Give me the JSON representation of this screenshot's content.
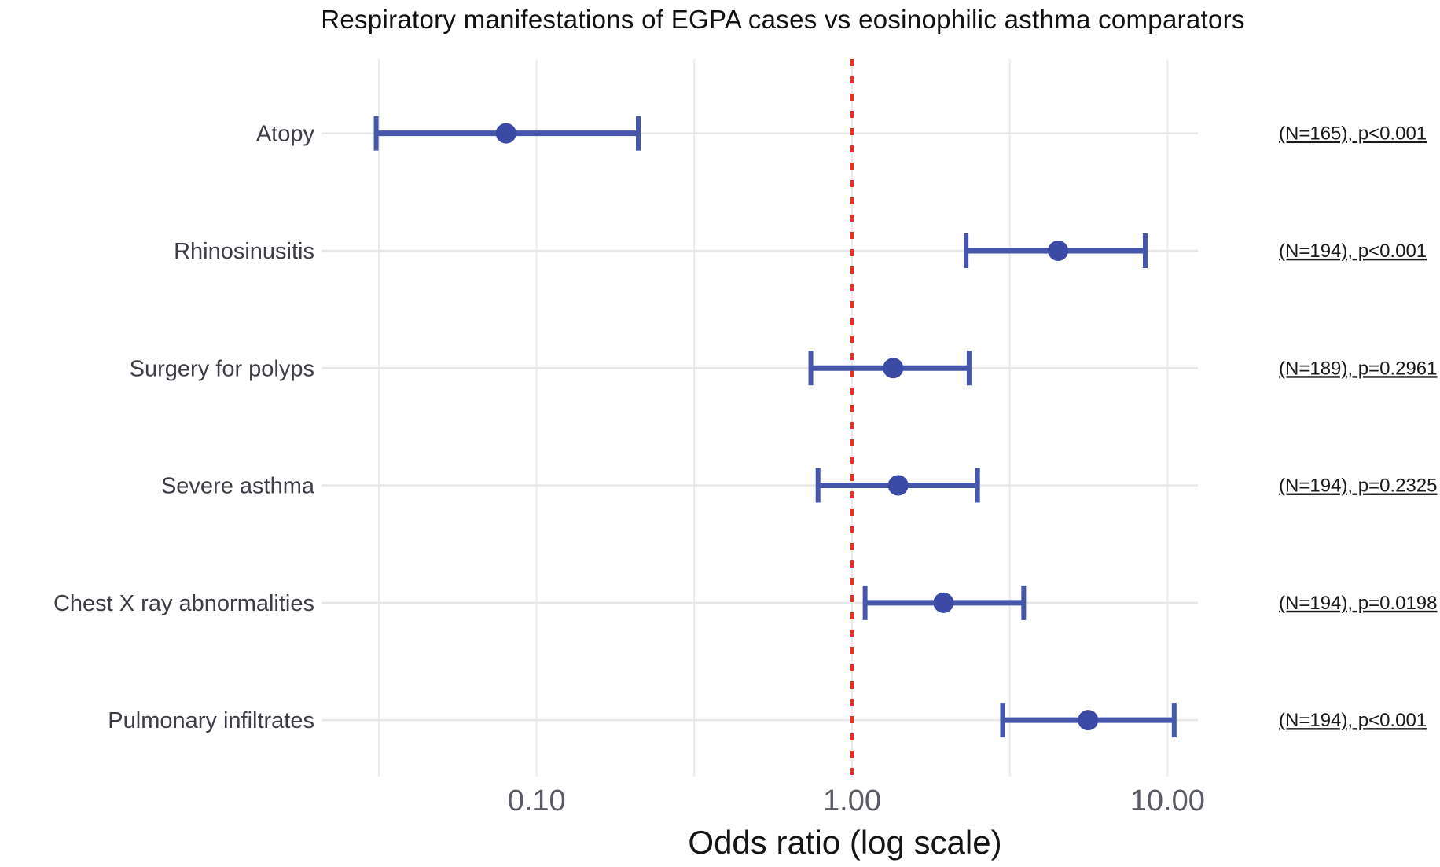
{
  "figure": {
    "title": "Respiratory manifestations of EGPA cases vs eosinophilic asthma comparators",
    "xlabel": "Odds ratio (log scale)"
  },
  "chart_data": {
    "type": "forest",
    "title": "Respiratory manifestations of EGPA cases vs eosinophilic asthma comparators",
    "xlabel": "Odds ratio (log scale)",
    "x_scale": "log10",
    "x_range": [
      0.022,
      12.5
    ],
    "x_ticks": [
      {
        "value": 0.1,
        "label": "0.10"
      },
      {
        "value": 1.0,
        "label": "1.00"
      },
      {
        "value": 10.0,
        "label": "10.00"
      }
    ],
    "minor_gridlines": [
      0.0316,
      0.316,
      3.162
    ],
    "reference_line": {
      "value": 1.0,
      "style": "dashed"
    },
    "grid": "on",
    "legend": "none",
    "rows": [
      {
        "label": "Atopy",
        "or": 0.08,
        "ci_low": 0.031,
        "ci_high": 0.21,
        "annotation": "(N=165), p<0.001"
      },
      {
        "label": "Rhinosinusitis",
        "or": 4.5,
        "ci_low": 2.3,
        "ci_high": 8.5,
        "annotation": "(N=194), p<0.001"
      },
      {
        "label": "Surgery for polyps",
        "or": 1.35,
        "ci_low": 0.74,
        "ci_high": 2.35,
        "annotation": "(N=189), p=0.2961"
      },
      {
        "label": "Severe asthma",
        "or": 1.4,
        "ci_low": 0.78,
        "ci_high": 2.5,
        "annotation": "(N=194), p=0.2325"
      },
      {
        "label": "Chest X ray abnormalities",
        "or": 1.95,
        "ci_low": 1.1,
        "ci_high": 3.5,
        "annotation": "(N=194), p=0.0198"
      },
      {
        "label": "Pulmonary infiltrates",
        "or": 5.6,
        "ci_low": 3.0,
        "ci_high": 10.5,
        "annotation": "(N=194), p<0.001"
      }
    ],
    "colors": {
      "point": "#3b4aa5",
      "ci_line": "#4656ab",
      "reference": "#f02c25",
      "gridline": "#ebebeb",
      "row_line": "#e7e7e7",
      "category_label": "#3d3d46",
      "tick_label": "#5b5b66",
      "annotation": "#1a1a1a",
      "title": "#111111"
    }
  }
}
